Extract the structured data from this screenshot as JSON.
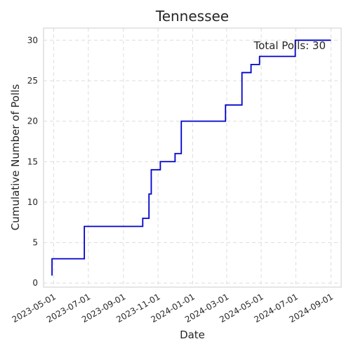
{
  "chart_data": {
    "type": "line",
    "step": "post",
    "title": "Tennessee",
    "xlabel": "Date",
    "ylabel": "Cumulative Number of Polls",
    "annotation": "Total Polls: 30",
    "grid": true,
    "line_color": "#0000cc",
    "x_ticks": [
      "2023-05-01",
      "2023-07-01",
      "2023-09-01",
      "2023-11-01",
      "2024-01-01",
      "2024-03-01",
      "2024-05-01",
      "2024-07-01",
      "2024-09-01"
    ],
    "y_ticks": [
      0,
      5,
      10,
      15,
      20,
      25,
      30
    ],
    "xlim": [
      "2023-04-13",
      "2024-09-19"
    ],
    "ylim": [
      -0.5,
      31.5
    ],
    "series": [
      {
        "x": [
          "2023-04-27",
          "2023-04-28",
          "2023-06-24",
          "2023-10-05",
          "2023-10-16",
          "2023-10-20",
          "2023-11-05",
          "2023-12-01",
          "2023-12-12",
          "2024-02-28",
          "2024-03-28",
          "2024-04-13",
          "2024-04-28",
          "2024-06-30",
          "2024-09-01"
        ],
        "y": [
          1,
          3,
          7,
          8,
          11,
          14,
          15,
          16,
          20,
          22,
          26,
          27,
          28,
          30,
          30
        ]
      }
    ]
  }
}
